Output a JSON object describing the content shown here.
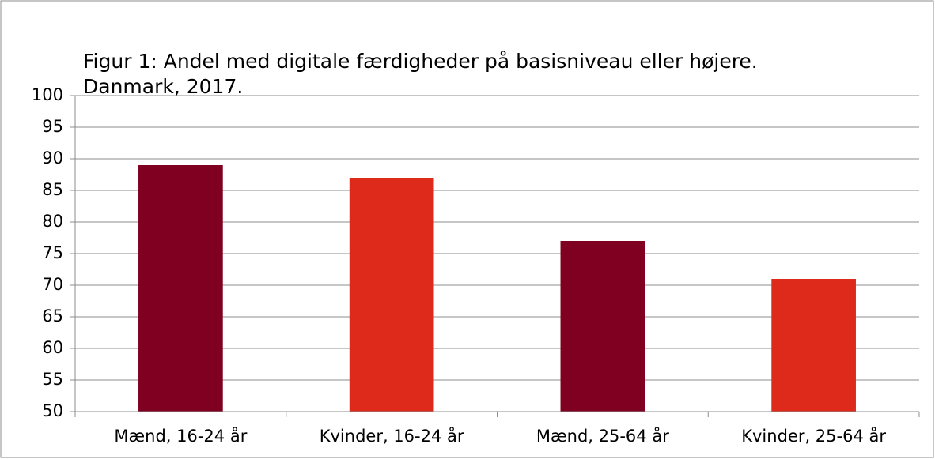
{
  "chart_data": {
    "type": "bar",
    "title": [
      "Figur 1: Andel med digitale færdigheder på basisniveau eller højere.",
      "Danmark, 2017."
    ],
    "categories": [
      "Mænd, 16-24 år",
      "Kvinder, 16-24 år",
      "Mænd, 25-64 år",
      "Kvinder, 25-64 år"
    ],
    "values": [
      89,
      87,
      77,
      71
    ],
    "colors": [
      "#7f0020",
      "#dd2a1b",
      "#7f0020",
      "#dd2a1b"
    ],
    "ylim": [
      50,
      100
    ],
    "yticks": [
      50,
      55,
      60,
      65,
      70,
      75,
      80,
      85,
      90,
      95,
      100
    ],
    "grid": true
  }
}
